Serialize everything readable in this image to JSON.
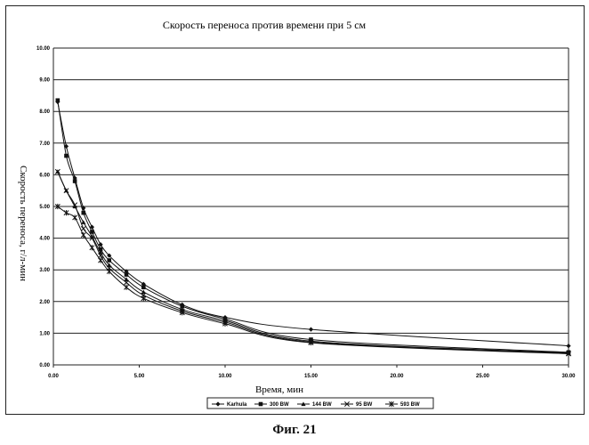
{
  "figure_caption": "Фиг. 21",
  "chart_data": {
    "type": "line",
    "title": "Скорость переноса против времени при 5 см",
    "xlabel": "Время, мин",
    "ylabel": "Скорость переноса, г/л-мин",
    "xlim": [
      0,
      30
    ],
    "ylim": [
      0,
      10
    ],
    "x_ticks": [
      "0.00",
      "5.00",
      "10.00",
      "15.00",
      "20.00",
      "25.00",
      "30.00"
    ],
    "y_ticks": [
      "0.00",
      "1.00",
      "2.00",
      "3.00",
      "4.00",
      "5.00",
      "6.00",
      "7.00",
      "8.00",
      "9.00",
      "10.00"
    ],
    "grid": "horizontal",
    "legend_position": "bottom",
    "series": [
      {
        "name": "Karhula",
        "marker": "diamond",
        "x": [
          0.25,
          0.75,
          1.25,
          1.75,
          2.25,
          2.75,
          3.25,
          4.25,
          5.25,
          7.5,
          10,
          15,
          30
        ],
        "y": [
          8.3,
          6.9,
          5.9,
          4.95,
          4.35,
          3.8,
          3.45,
          2.95,
          2.55,
          1.9,
          1.5,
          1.12,
          0.6
        ]
      },
      {
        "name": "300 BW",
        "marker": "square",
        "x": [
          0.25,
          0.75,
          1.25,
          1.75,
          2.25,
          2.75,
          3.25,
          4.25,
          5.25,
          7.5,
          10,
          15,
          30
        ],
        "y": [
          8.35,
          6.6,
          5.8,
          4.8,
          4.2,
          3.65,
          3.3,
          2.85,
          2.45,
          1.85,
          1.45,
          0.8,
          0.4
        ]
      },
      {
        "name": "144 BW",
        "marker": "triangle",
        "x": [
          0.25,
          0.75,
          1.25,
          1.75,
          2.25,
          2.75,
          3.25,
          4.25,
          5.25,
          7.5,
          10,
          15,
          30
        ],
        "y": [
          6.1,
          5.5,
          5.0,
          4.5,
          4.05,
          3.55,
          3.15,
          2.7,
          2.3,
          1.75,
          1.4,
          0.75,
          0.38
        ]
      },
      {
        "name": "95 BW",
        "marker": "x",
        "x": [
          0.25,
          0.75,
          1.25,
          1.75,
          2.25,
          2.75,
          3.25,
          4.25,
          5.25,
          7.5,
          10,
          15,
          30
        ],
        "y": [
          6.1,
          5.5,
          5.05,
          4.3,
          4.0,
          3.45,
          3.05,
          2.6,
          2.2,
          1.7,
          1.35,
          0.72,
          0.36
        ]
      },
      {
        "name": "593 BW",
        "marker": "star",
        "x": [
          0.25,
          0.75,
          1.25,
          1.75,
          2.25,
          2.75,
          3.25,
          4.25,
          5.25,
          7.5,
          10,
          15,
          30
        ],
        "y": [
          5.0,
          4.8,
          4.65,
          4.1,
          3.7,
          3.3,
          2.95,
          2.45,
          2.1,
          1.65,
          1.3,
          0.7,
          0.35
        ]
      }
    ]
  }
}
